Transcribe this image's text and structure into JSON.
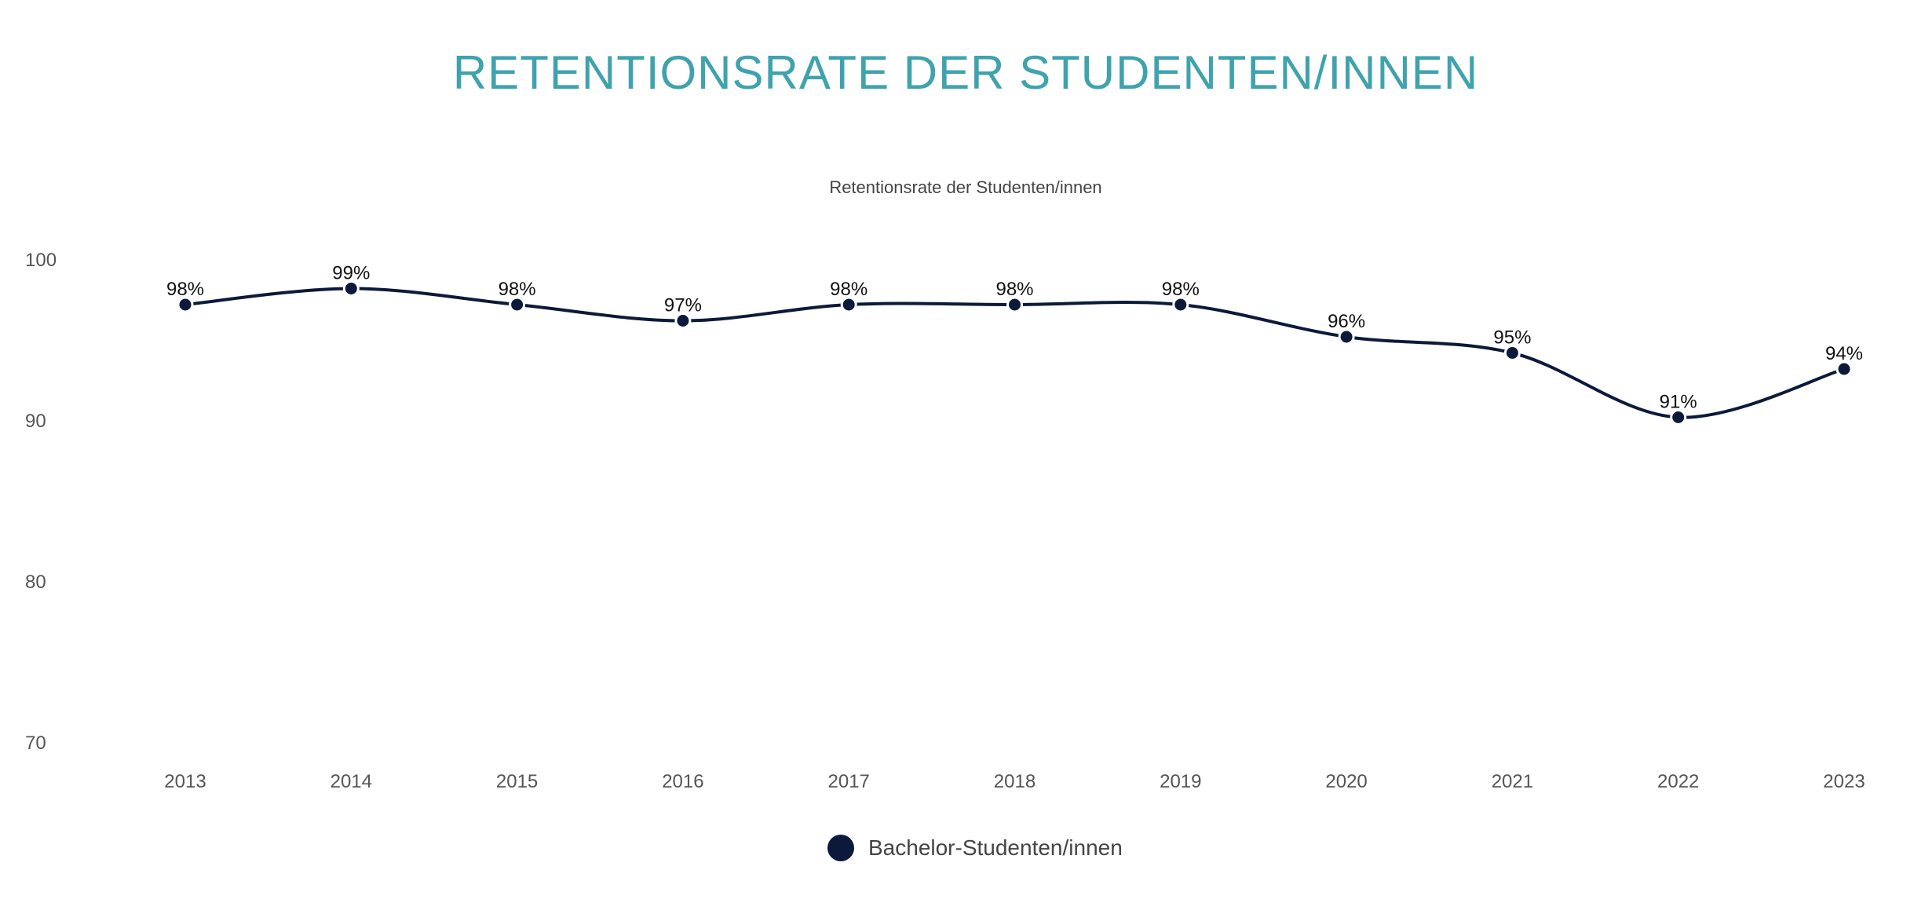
{
  "chart_data": {
    "type": "line",
    "title": "RETENTIONSRATE DER STUDENTEN/INNEN",
    "subtitle": "Retentionsrate der Studenten/innen",
    "xlabel": "",
    "ylabel": "",
    "categories": [
      "2013",
      "2014",
      "2015",
      "2016",
      "2017",
      "2018",
      "2019",
      "2020",
      "2021",
      "2022",
      "2023"
    ],
    "series": [
      {
        "name": "Bachelor-Studenten/innen",
        "values": [
          98,
          99,
          98,
          97,
          98,
          98,
          98,
          96,
          95,
          91,
          94
        ],
        "color": "#0b1a3a"
      }
    ],
    "data_labels": [
      "98%",
      "99%",
      "98%",
      "97%",
      "98%",
      "98%",
      "98%",
      "96%",
      "95%",
      "91%",
      "94%"
    ],
    "yticks": [
      100,
      90,
      80,
      70
    ],
    "ylim": [
      70,
      100
    ],
    "grid": false,
    "legend": "bottom",
    "smooth": true,
    "title_color": "#3fa3ad"
  }
}
